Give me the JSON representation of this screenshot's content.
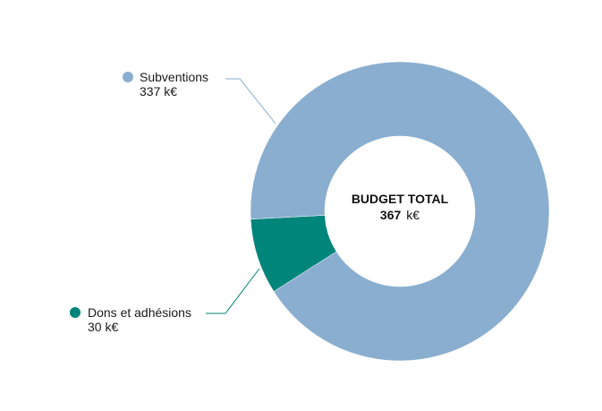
{
  "chart_data": {
    "type": "pie",
    "donut": true,
    "center": {
      "title": "BUDGET TOTAL",
      "total_value": "367",
      "total_unit": "k€"
    },
    "categories": [
      "Subventions",
      "Dons et adhésions"
    ],
    "values": [
      337,
      30
    ],
    "labels": [
      "337 k€",
      "30 k€"
    ],
    "colors": [
      "#8aaecf",
      "#00857a"
    ],
    "legend": "left"
  }
}
